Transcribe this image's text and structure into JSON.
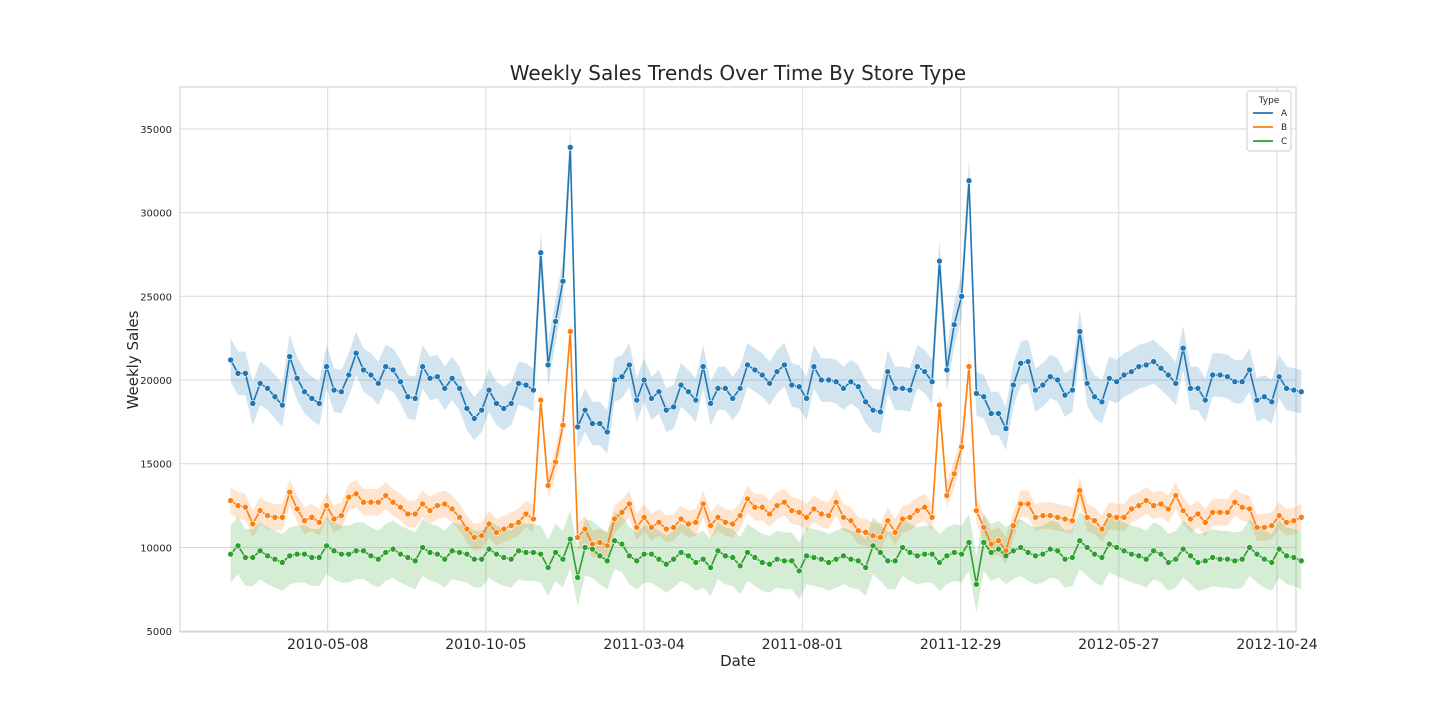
{
  "chart_data": {
    "type": "line",
    "title": "Weekly Sales Trends Over Time By Store Type",
    "xlabel": "Date",
    "ylabel": "Weekly Sales",
    "x_start": "2010-02-05",
    "x_step_days": 7,
    "x_ticks": [
      "2010-05-08",
      "2010-10-05",
      "2011-03-04",
      "2011-08-01",
      "2011-12-29",
      "2012-05-27",
      "2012-10-24"
    ],
    "xlim": [
      "2009-12-19",
      "2012-11-11"
    ],
    "y_ticks": [
      5000,
      10000,
      15000,
      20000,
      25000,
      30000,
      35000
    ],
    "ylim": [
      4950,
      37500
    ],
    "grid": true,
    "legend": {
      "title": "Type",
      "position": "top-right"
    },
    "series": [
      {
        "name": "A",
        "color": "#1f77b4",
        "band": 1300,
        "values": [
          21200,
          20400,
          20400,
          18600,
          19800,
          19500,
          19000,
          18500,
          21400,
          20100,
          19300,
          18900,
          18600,
          20800,
          19400,
          19300,
          20300,
          21600,
          20600,
          20300,
          19800,
          20800,
          20600,
          19900,
          19000,
          18900,
          20800,
          20100,
          20200,
          19500,
          20100,
          19500,
          18300,
          17700,
          18200,
          19400,
          18600,
          18300,
          18600,
          19800,
          19700,
          19400,
          27600,
          20900,
          23500,
          25900,
          33900,
          17200,
          18200,
          17400,
          17400,
          16900,
          20000,
          20200,
          20900,
          18800,
          20000,
          18900,
          19300,
          18200,
          18400,
          19700,
          19300,
          18800,
          20800,
          18600,
          19500,
          19500,
          18900,
          19500,
          20900,
          20600,
          20300,
          19800,
          20500,
          20900,
          19700,
          19600,
          18900,
          20800,
          20000,
          20000,
          19900,
          19500,
          19900,
          19600,
          18700,
          18200,
          18100,
          20500,
          19500,
          19500,
          19400,
          20800,
          20500,
          19900,
          27100,
          20600,
          23300,
          25000,
          31900,
          19200,
          19000,
          18000,
          18000,
          17100,
          19700,
          21000,
          21100,
          19400,
          19700,
          20200,
          20000,
          19100,
          19400,
          22900,
          19800,
          19000,
          18700,
          20100,
          19900,
          20300,
          20500,
          20800,
          20900,
          21100,
          20700,
          20300,
          19800,
          21900,
          19500,
          19500,
          18800,
          20300,
          20300,
          20200,
          19900,
          19900,
          20600,
          18800,
          19000,
          18700,
          20200,
          19500,
          19400,
          19300
        ]
      },
      {
        "name": "B",
        "color": "#ff7f0e",
        "band": 800,
        "values": [
          12800,
          12500,
          12400,
          11400,
          12200,
          11900,
          11800,
          11800,
          13300,
          12300,
          11600,
          11800,
          11500,
          12500,
          11700,
          11900,
          13000,
          13200,
          12700,
          12700,
          12700,
          13100,
          12700,
          12400,
          12000,
          12000,
          12600,
          12200,
          12500,
          12600,
          12300,
          11800,
          11100,
          10600,
          10700,
          11400,
          10900,
          11100,
          11300,
          11500,
          12000,
          11700,
          18800,
          13700,
          15100,
          17300,
          22900,
          10600,
          11100,
          10200,
          10300,
          10100,
          11700,
          12100,
          12600,
          11200,
          11800,
          11200,
          11500,
          11100,
          11200,
          11700,
          11400,
          11500,
          12600,
          11300,
          11800,
          11500,
          11400,
          11900,
          12900,
          12400,
          12400,
          12000,
          12500,
          12700,
          12200,
          12100,
          11800,
          12300,
          12000,
          11900,
          12700,
          11800,
          11600,
          11000,
          10900,
          10700,
          10600,
          11600,
          10900,
          11700,
          11800,
          12200,
          12400,
          11800,
          18500,
          13100,
          14400,
          16000,
          20800,
          12200,
          11200,
          10200,
          10400,
          9800,
          11300,
          12600,
          12600,
          11800,
          11900,
          11900,
          11800,
          11700,
          11600,
          13400,
          11800,
          11600,
          11100,
          11900,
          11800,
          11800,
          12300,
          12500,
          12800,
          12500,
          12600,
          12300,
          13100,
          12200,
          11700,
          12000,
          11500,
          12100,
          12100,
          12100,
          12700,
          12400,
          12300,
          11200,
          11200,
          11300,
          11900,
          11500,
          11600,
          11800
        ]
      },
      {
        "name": "C",
        "color": "#2ca02c",
        "band": 1700,
        "values": [
          9600,
          10100,
          9400,
          9400,
          9800,
          9500,
          9300,
          9100,
          9500,
          9600,
          9600,
          9400,
          9400,
          10100,
          9800,
          9600,
          9600,
          9800,
          9800,
          9500,
          9300,
          9700,
          9900,
          9600,
          9400,
          9200,
          10000,
          9700,
          9600,
          9300,
          9800,
          9700,
          9600,
          9300,
          9300,
          9900,
          9600,
          9400,
          9300,
          9800,
          9700,
          9700,
          9600,
          8800,
          9700,
          9300,
          10500,
          8200,
          10000,
          9900,
          9500,
          9200,
          10400,
          10200,
          9500,
          9200,
          9600,
          9600,
          9300,
          9000,
          9300,
          9700,
          9500,
          9100,
          9300,
          8800,
          9800,
          9500,
          9400,
          8900,
          9700,
          9400,
          9100,
          9000,
          9300,
          9200,
          9200,
          8600,
          9500,
          9400,
          9300,
          9100,
          9300,
          9500,
          9300,
          9200,
          8800,
          10100,
          9700,
          9200,
          9200,
          10000,
          9700,
          9500,
          9600,
          9600,
          9100,
          9500,
          9700,
          9600,
          10300,
          7800,
          10300,
          9700,
          9900,
          9500,
          9800,
          10000,
          9700,
          9500,
          9600,
          9900,
          9800,
          9300,
          9400,
          10400,
          10000,
          9600,
          9400,
          10200,
          10000,
          9800,
          9600,
          9500,
          9300,
          9800,
          9600,
          9100,
          9300,
          9900,
          9500,
          9100,
          9200,
          9400,
          9300,
          9300,
          9200,
          9300,
          10000,
          9600,
          9300,
          9100,
          9900,
          9500,
          9400,
          9200
        ]
      }
    ]
  }
}
